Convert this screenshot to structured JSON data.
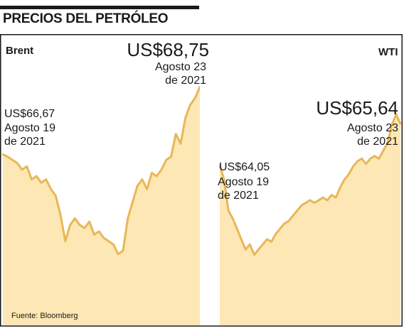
{
  "header": {
    "title": "PRECIOS DEL PETRÓLEO"
  },
  "source": "Fuente: Bloomberg",
  "colors": {
    "line": "#e8b758",
    "fill": "#fde7b4",
    "divider": "#ffffff",
    "frame": "#1a1a1a"
  },
  "chart_data": [
    {
      "type": "area",
      "name": "Brent",
      "title": "",
      "xlabel": "",
      "ylabel": "",
      "ylim": [
        61.5,
        69.5
      ],
      "grid": false,
      "annotations": {
        "start": {
          "value": "US$66,67",
          "date_line1": "Agosto 19",
          "date_line2": "de 2021"
        },
        "end": {
          "value": "US$68,75",
          "date_line1": "Agosto 23",
          "date_line2": "de 2021"
        }
      },
      "values": [
        66.67,
        66.6,
        66.5,
        66.4,
        66.2,
        66.3,
        65.9,
        66.0,
        65.8,
        65.9,
        65.6,
        65.4,
        64.8,
        64.0,
        64.5,
        64.7,
        64.5,
        64.4,
        64.6,
        64.2,
        64.3,
        64.1,
        64.0,
        63.9,
        63.6,
        63.7,
        64.7,
        65.2,
        65.7,
        65.9,
        65.6,
        66.1,
        66.0,
        66.2,
        66.5,
        66.6,
        67.3,
        67.0,
        67.8,
        68.2,
        68.4,
        68.75
      ]
    },
    {
      "type": "area",
      "name": "WTI",
      "title": "",
      "xlabel": "",
      "ylabel": "",
      "ylim": [
        58.0,
        68.0
      ],
      "grid": false,
      "annotations": {
        "start": {
          "value": "US$64,05",
          "date_line1": "Agosto 19",
          "date_line2": "de 2021"
        },
        "end": {
          "value": "US$65,64",
          "date_line1": "Agosto 23",
          "date_line2": "de 2021"
        }
      },
      "values": [
        64.05,
        63.5,
        62.3,
        62.0,
        61.6,
        61.2,
        60.8,
        61.0,
        60.6,
        60.8,
        61.0,
        61.2,
        61.1,
        61.4,
        61.6,
        61.8,
        61.9,
        62.1,
        62.3,
        62.5,
        62.6,
        62.7,
        62.6,
        62.7,
        62.8,
        62.7,
        62.9,
        62.8,
        63.2,
        63.5,
        63.7,
        64.0,
        64.2,
        64.3,
        64.1,
        64.3,
        64.4,
        64.3,
        64.6,
        64.9,
        65.6,
        66.0,
        65.64
      ]
    }
  ]
}
